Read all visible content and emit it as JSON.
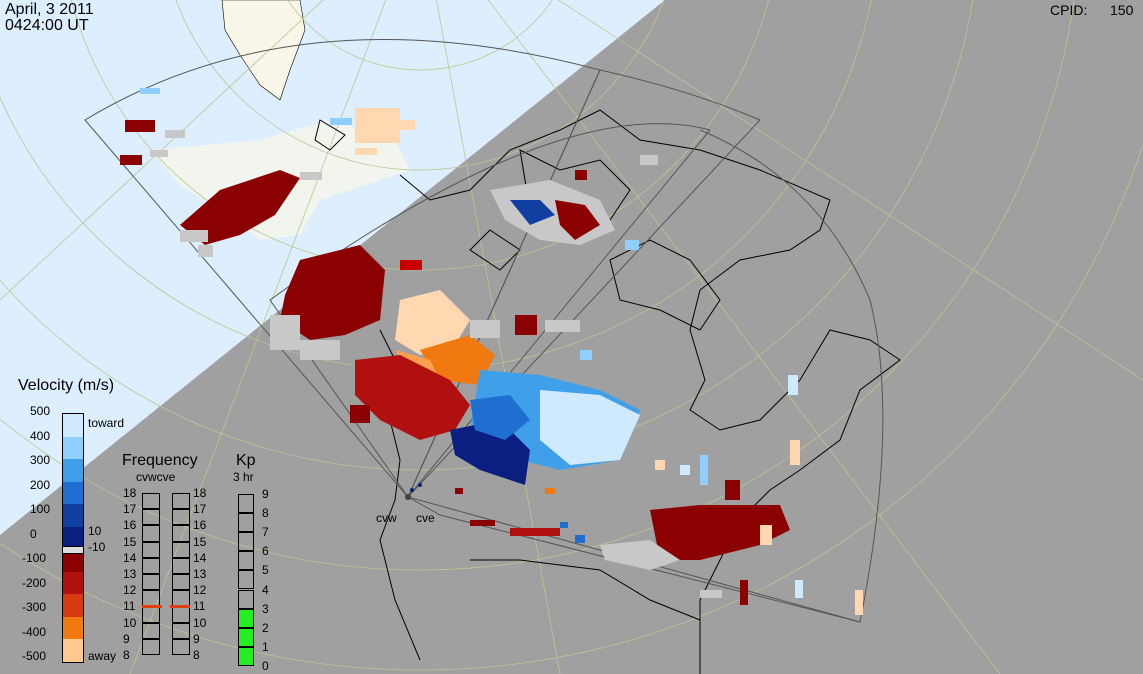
{
  "header": {
    "date": "April, 3 2011",
    "time": "0424:00 UT",
    "cpid_label": "CPID:",
    "cpid_value": "150"
  },
  "radars": [
    "cvw",
    "cve"
  ],
  "velocity_scale": {
    "title": "Velocity (m/s)",
    "ticks": [
      "500",
      "400",
      "300",
      "200",
      "100",
      "0",
      "-100",
      "-200",
      "-300",
      "-400",
      "-500"
    ],
    "toward_label": "toward",
    "away_label": "away",
    "threshold_pos": "10",
    "threshold_neg": "-10",
    "colors": [
      "#cfe9ff",
      "#8fcfff",
      "#3f9fe8",
      "#1f6fd0",
      "#103fa0",
      "#0b1f80",
      "#8b0000",
      "#b01010",
      "#d83a10",
      "#f07a10",
      "#ffc890"
    ]
  },
  "frequency_panel": {
    "title": "Frequency",
    "subtitle": "cvwcve",
    "ticks": [
      "18",
      "17",
      "16",
      "15",
      "14",
      "13",
      "12",
      "11",
      "10",
      "9",
      "8"
    ],
    "cvw_value": 11,
    "cve_value": 11,
    "marker_color": "#e04010"
  },
  "kp_panel": {
    "title": "Kp",
    "subtitle": "3 hr",
    "ticks": [
      "9",
      "8",
      "7",
      "6",
      "5",
      "4",
      "3",
      "2",
      "1",
      "0"
    ],
    "value": 3,
    "fill_color": "#22ee22"
  },
  "map_colors": {
    "daylight": "#ddeeff",
    "night": "#a0a0a0",
    "land_day": "#f8f6e8",
    "grid": "#b8c890"
  }
}
